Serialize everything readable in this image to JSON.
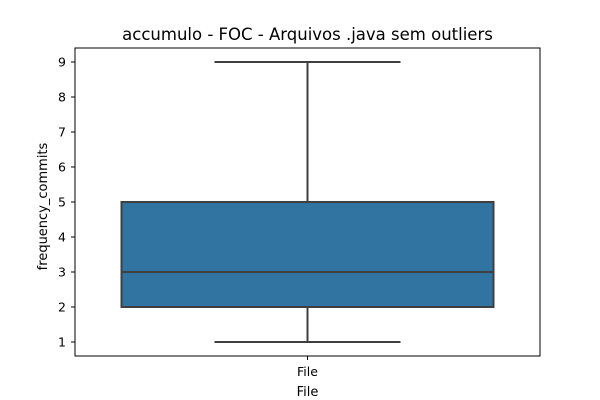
{
  "chart_data": {
    "type": "box",
    "title": "accumulo - FOC - Arquivos .java sem outliers",
    "xlabel": "File",
    "ylabel": "frequency_commits",
    "categories": [
      "File"
    ],
    "ylim": [
      0.6,
      9.4
    ],
    "yticks": [
      1,
      2,
      3,
      4,
      5,
      6,
      7,
      8,
      9
    ],
    "boxes": [
      {
        "category": "File",
        "min": 1,
        "q1": 2,
        "median": 3,
        "q3": 5,
        "max": 9
      }
    ],
    "grid": false,
    "legend": "none",
    "colors": {
      "box_fill": "#3274a1",
      "line": "#3f3f3f",
      "frame": "#000000"
    }
  }
}
